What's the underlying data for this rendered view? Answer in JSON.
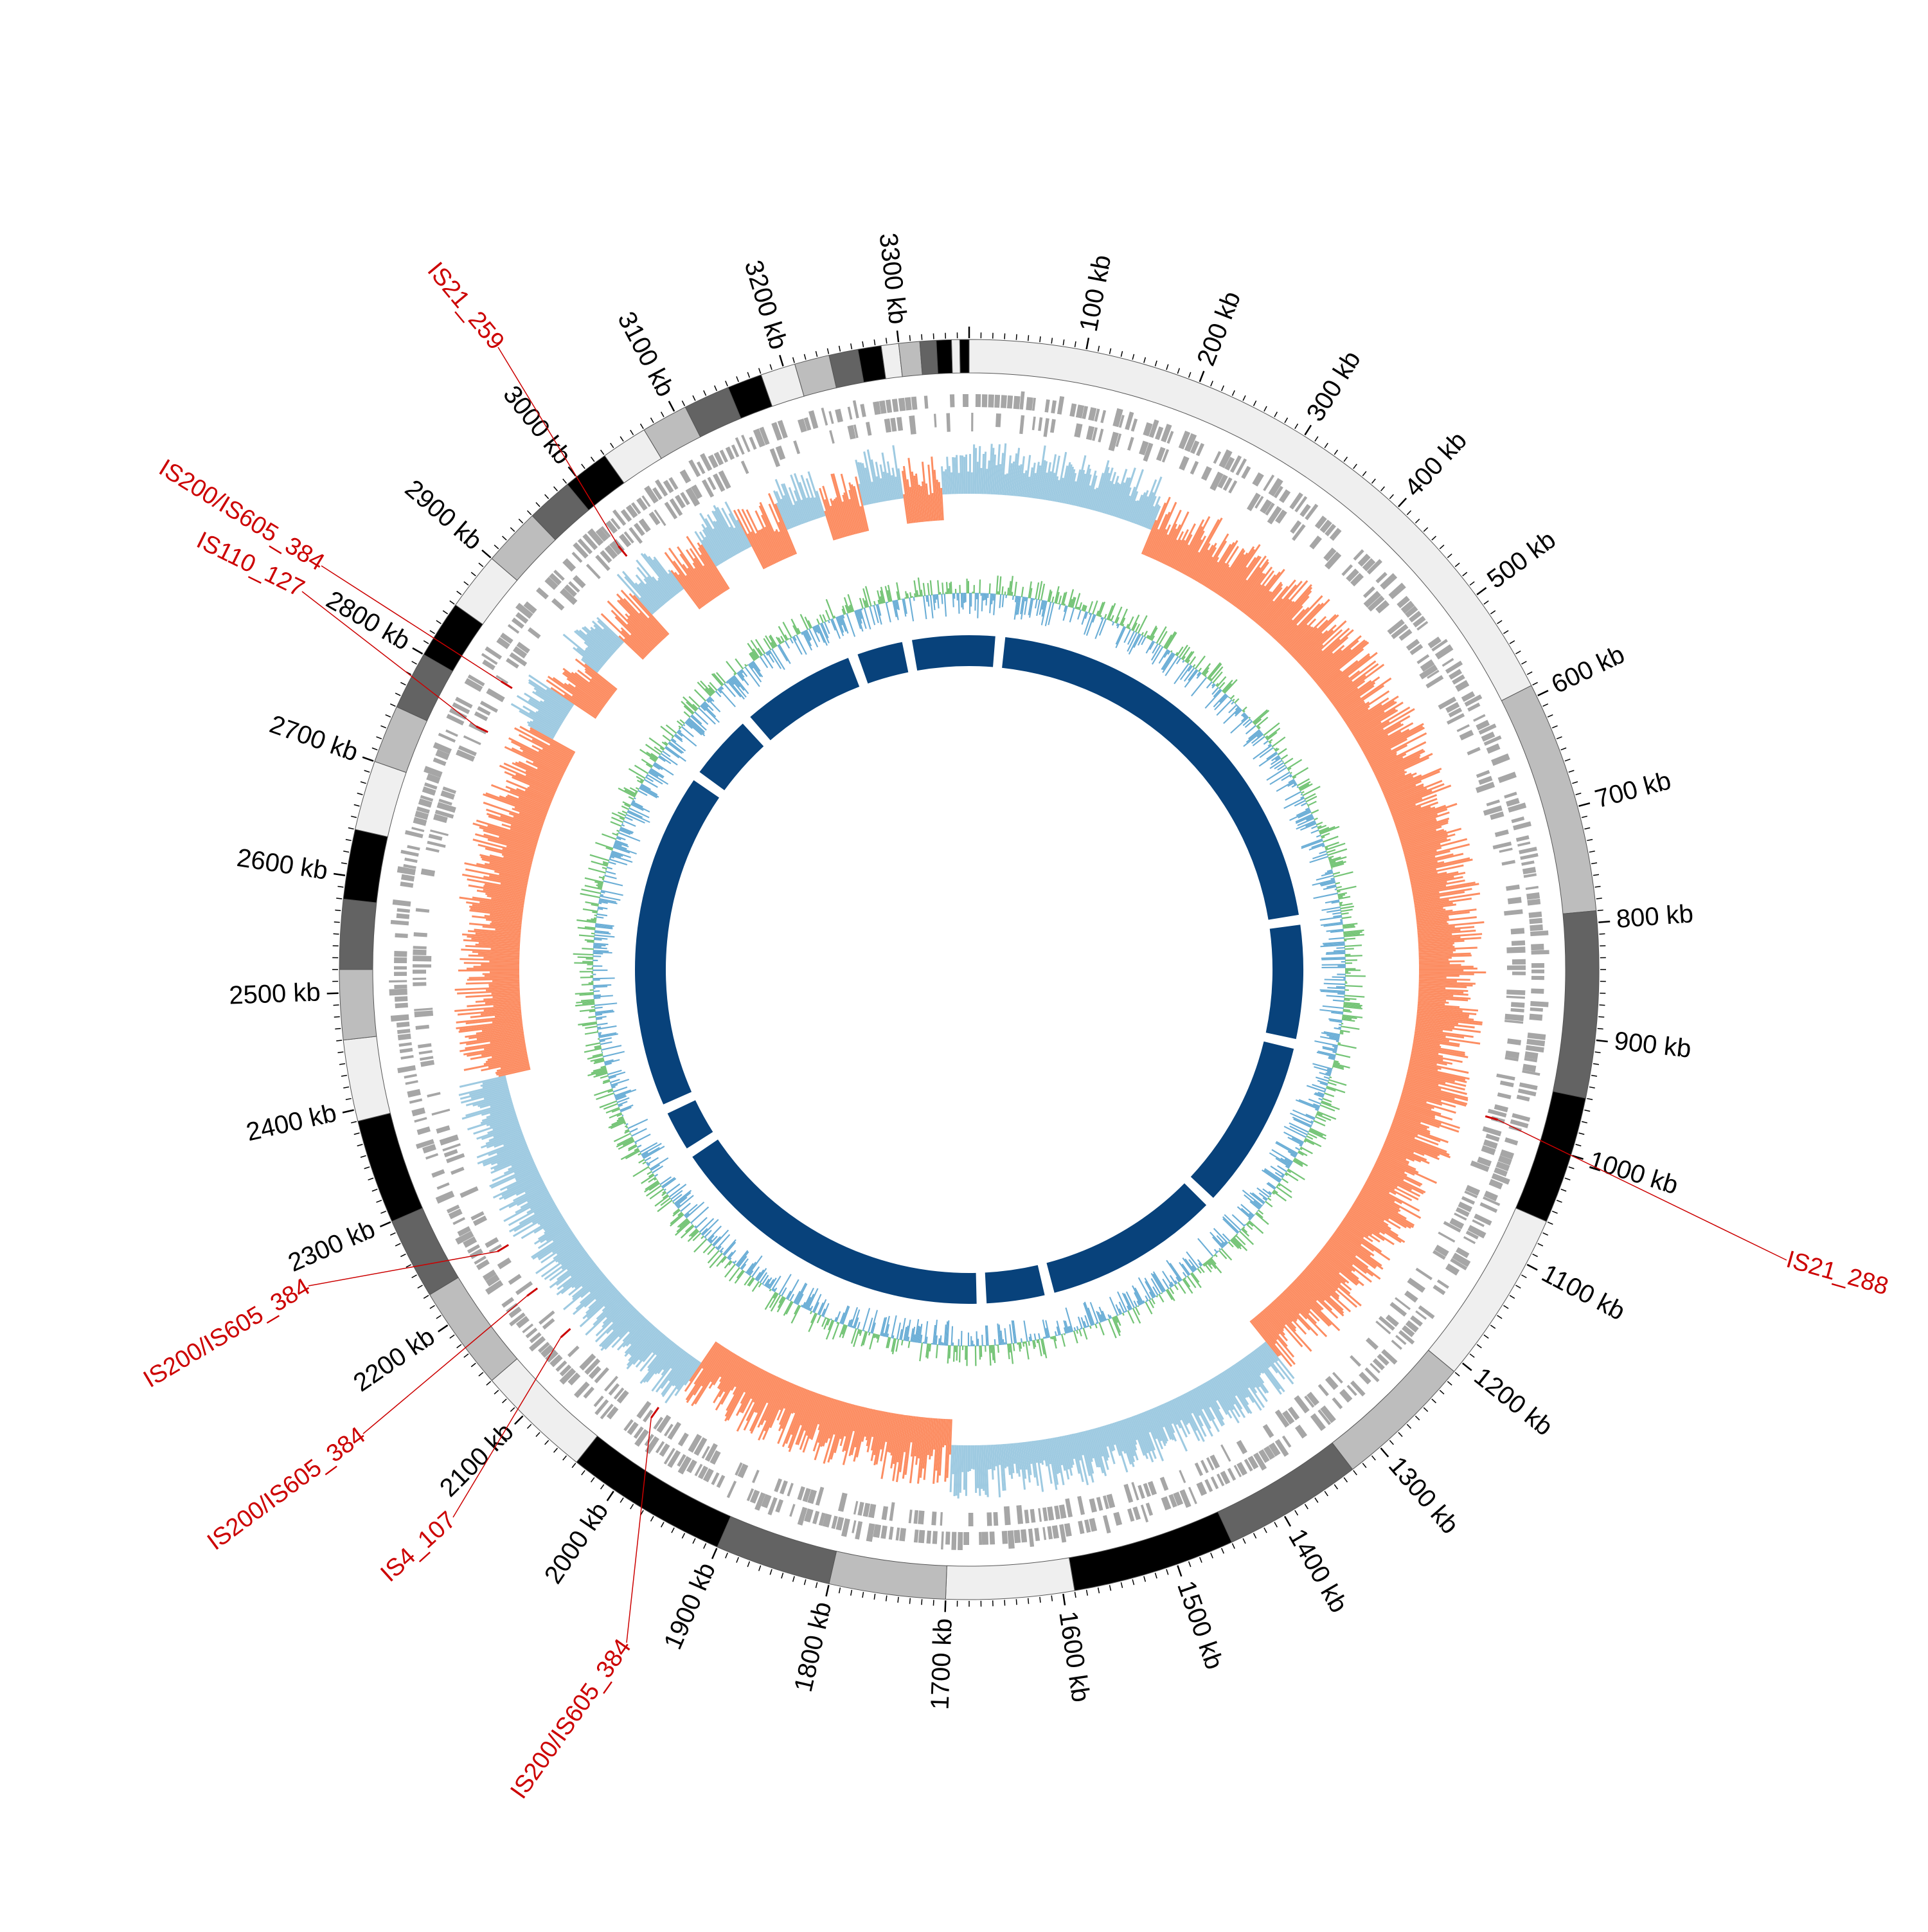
{
  "genome": {
    "length_kb": 3360,
    "tick_label_suffix": " kb",
    "major_tick_kb": 100,
    "minor_tick_kb": 10
  },
  "tick_labels": [
    "100 kb",
    "200 kb",
    "300 kb",
    "400 kb",
    "500 kb",
    "600 kb",
    "700 kb",
    "800 kb",
    "900 kb",
    "1000 kb",
    "1100 kb",
    "1200 kb",
    "1300 kb",
    "1400 kb",
    "1500 kb",
    "1600 kb",
    "1700 kb",
    "1800 kb",
    "1900 kb",
    "2000 kb",
    "2100 kb",
    "2200 kb",
    "2300 kb",
    "2400 kb",
    "2500 kb",
    "2600 kb",
    "2700 kb",
    "2800 kb",
    "2900 kb",
    "3000 kb",
    "3100 kb",
    "3200 kb",
    "3300 kb"
  ],
  "ideogram_bands": [
    {
      "start": 0,
      "end": 590,
      "shade": "#efefef"
    },
    {
      "start": 590,
      "end": 790,
      "shade": "#bdbdbd"
    },
    {
      "start": 790,
      "end": 950,
      "shade": "#636363"
    },
    {
      "start": 950,
      "end": 1060,
      "shade": "#000000"
    },
    {
      "start": 1060,
      "end": 1210,
      "shade": "#efefef"
    },
    {
      "start": 1210,
      "end": 1330,
      "shade": "#bdbdbd"
    },
    {
      "start": 1330,
      "end": 1450,
      "shade": "#636363"
    },
    {
      "start": 1450,
      "end": 1590,
      "shade": "#000000"
    },
    {
      "start": 1590,
      "end": 1700,
      "shade": "#efefef"
    },
    {
      "start": 1700,
      "end": 1800,
      "shade": "#bdbdbd"
    },
    {
      "start": 1800,
      "end": 1900,
      "shade": "#636363"
    },
    {
      "start": 1900,
      "end": 2040,
      "shade": "#000000"
    },
    {
      "start": 2040,
      "end": 2140,
      "shade": "#efefef"
    },
    {
      "start": 2140,
      "end": 2230,
      "shade": "#bdbdbd"
    },
    {
      "start": 2230,
      "end": 2300,
      "shade": "#636363"
    },
    {
      "start": 2300,
      "end": 2390,
      "shade": "#000000"
    },
    {
      "start": 2390,
      "end": 2460,
      "shade": "#efefef"
    },
    {
      "start": 2460,
      "end": 2520,
      "shade": "#bdbdbd"
    },
    {
      "start": 2520,
      "end": 2580,
      "shade": "#636363"
    },
    {
      "start": 2580,
      "end": 2640,
      "shade": "#000000"
    },
    {
      "start": 2640,
      "end": 2700,
      "shade": "#efefef"
    },
    {
      "start": 2700,
      "end": 2750,
      "shade": "#bdbdbd"
    },
    {
      "start": 2750,
      "end": 2800,
      "shade": "#636363"
    },
    {
      "start": 2800,
      "end": 2850,
      "shade": "#000000"
    },
    {
      "start": 2850,
      "end": 2900,
      "shade": "#efefef"
    },
    {
      "start": 2900,
      "end": 2950,
      "shade": "#bdbdbd"
    },
    {
      "start": 2950,
      "end": 2990,
      "shade": "#636363"
    },
    {
      "start": 2990,
      "end": 3030,
      "shade": "#000000"
    },
    {
      "start": 3030,
      "end": 3070,
      "shade": "#efefef"
    },
    {
      "start": 3070,
      "end": 3110,
      "shade": "#bdbdbd"
    },
    {
      "start": 3110,
      "end": 3150,
      "shade": "#636363"
    },
    {
      "start": 3150,
      "end": 3180,
      "shade": "#000000"
    },
    {
      "start": 3180,
      "end": 3210,
      "shade": "#efefef"
    },
    {
      "start": 3210,
      "end": 3240,
      "shade": "#bdbdbd"
    },
    {
      "start": 3240,
      "end": 3265,
      "shade": "#636363"
    },
    {
      "start": 3265,
      "end": 3285,
      "shade": "#000000"
    },
    {
      "start": 3285,
      "end": 3300,
      "shade": "#efefef"
    },
    {
      "start": 3300,
      "end": 3318,
      "shade": "#bdbdbd"
    },
    {
      "start": 3318,
      "end": 3332,
      "shade": "#636363"
    },
    {
      "start": 3332,
      "end": 3345,
      "shade": "#000000"
    },
    {
      "start": 3345,
      "end": 3352,
      "shade": "#efefef"
    },
    {
      "start": 3352,
      "end": 3360,
      "shade": "#000000"
    }
  ],
  "is_elements": [
    {
      "label": "IS21_288",
      "position_kb": 988
    },
    {
      "label": "IS200/IS605_384",
      "position_kb": 2232
    },
    {
      "label": "IS200/IS605_384",
      "position_kb": 2180
    },
    {
      "label": "IS4_107",
      "position_kb": 2128
    },
    {
      "label": "IS200/IS605_384",
      "position_kb": 2010
    },
    {
      "label": "IS200/IS605_384",
      "position_kb": 2815
    },
    {
      "label": "IS110_127",
      "position_kb": 2765
    },
    {
      "label": "IS21_259",
      "position_kb": 2990
    }
  ],
  "tracks": {
    "genes": "CDS on forward and reverse strands (grey)",
    "gc_skew": {
      "positive_color": "#fc8d62",
      "negative_color": "#9ecae1"
    },
    "gc_content": {
      "above_color": "#74c476",
      "below_color": "#6baed6"
    },
    "syntenic_blocks": {
      "color": "#08427b"
    }
  },
  "chart_data": {
    "type": "circular_genome_map",
    "genome_length_kb": 3360,
    "gc_skew_sign_segments": [
      {
        "start": 0,
        "end": 210,
        "sign": "negative"
      },
      {
        "start": 210,
        "end": 1320,
        "sign": "positive"
      },
      {
        "start": 1320,
        "end": 1700,
        "sign": "negative"
      },
      {
        "start": 1700,
        "end": 2000,
        "sign": "positive"
      },
      {
        "start": 2000,
        "end": 2400,
        "sign": "negative"
      },
      {
        "start": 2400,
        "end": 2760,
        "sign": "positive"
      },
      {
        "start": 2760,
        "end": 3360,
        "sign": "mixed"
      }
    ],
    "syntenic_gaps_kb": [
      50,
      760,
      960,
      1250,
      1550,
      1660,
      2210,
      2290,
      2850,
      2970,
      3170,
      3260
    ]
  }
}
